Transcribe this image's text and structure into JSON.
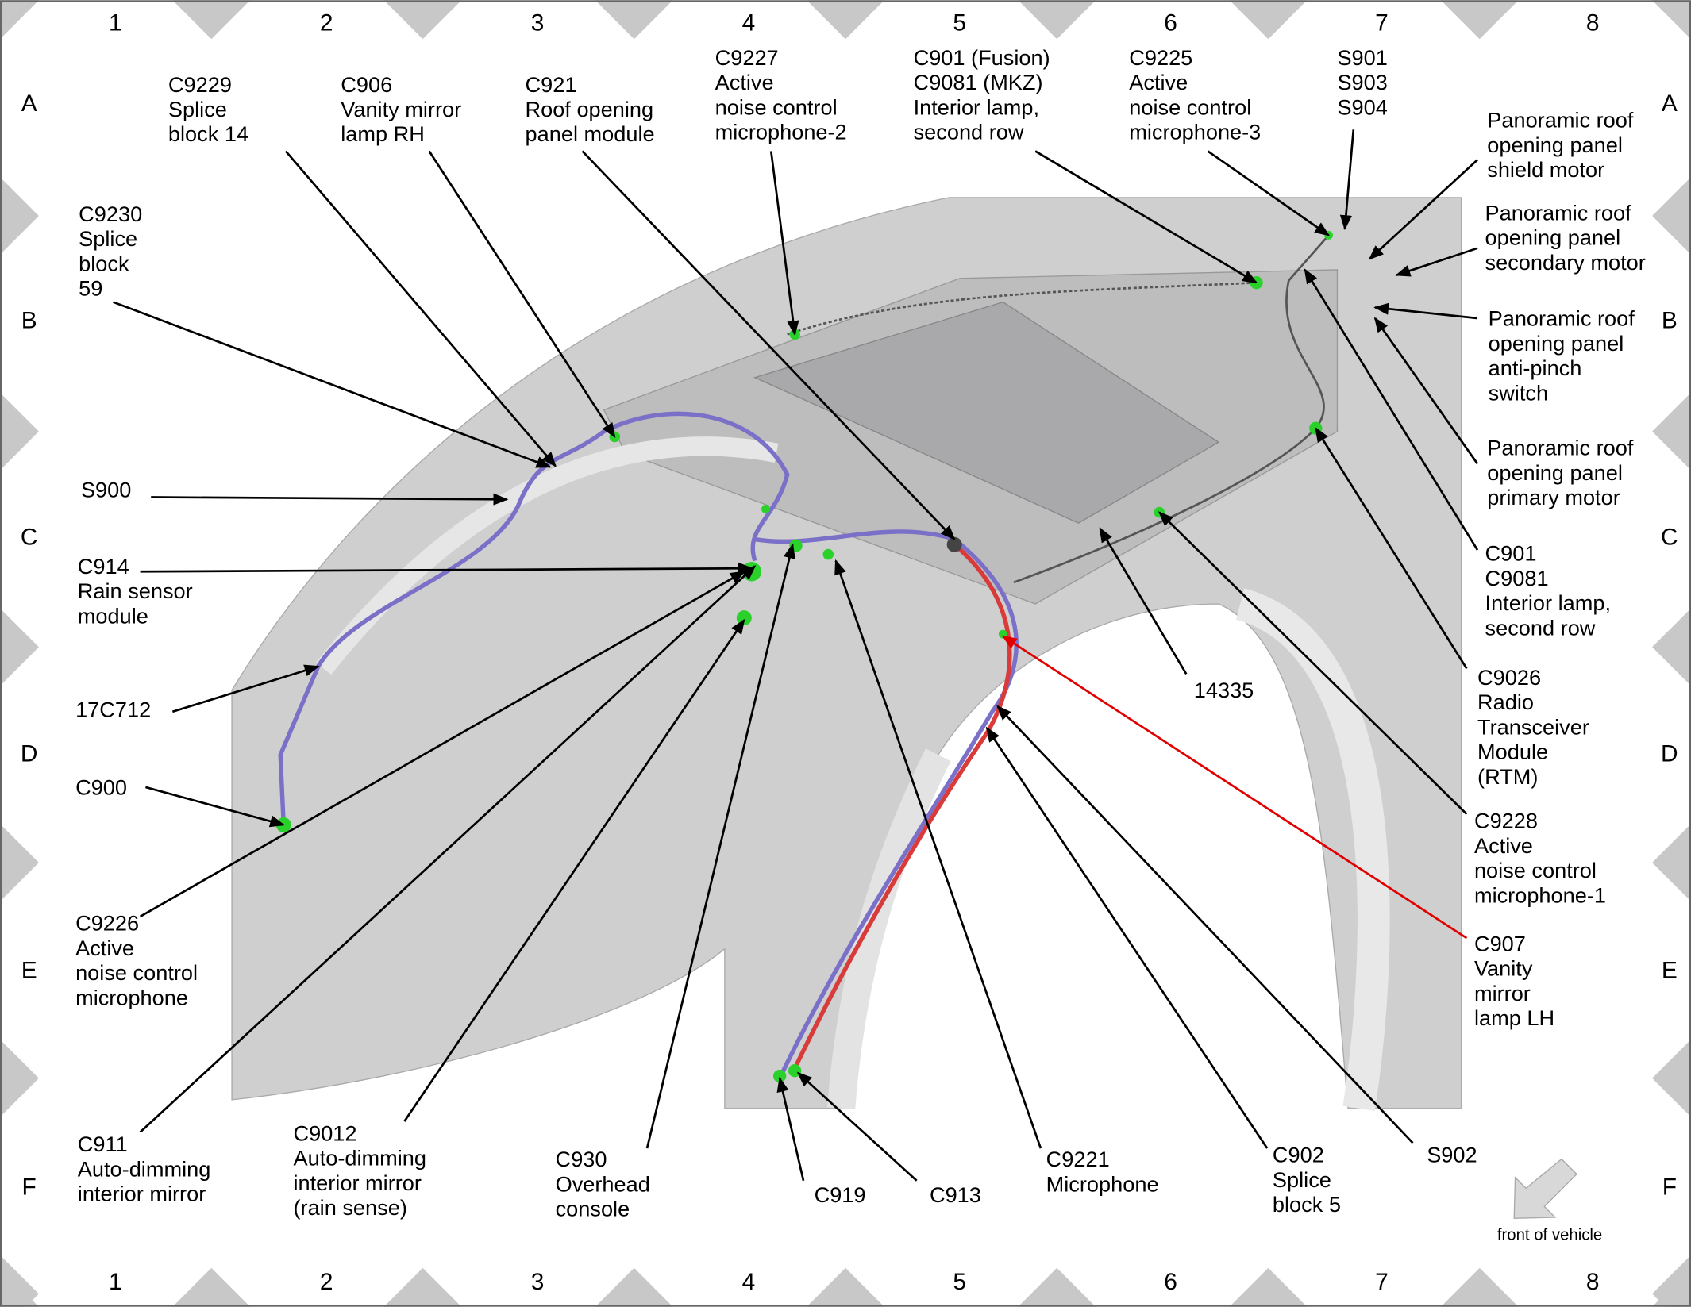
{
  "grid": {
    "columns": [
      "1",
      "2",
      "3",
      "4",
      "5",
      "6",
      "7",
      "8"
    ],
    "rows": [
      "A",
      "B",
      "C",
      "D",
      "E",
      "F"
    ]
  },
  "labels": [
    {
      "lines": [
        "C9229",
        "Splice",
        "block 14"
      ]
    },
    {
      "lines": [
        "C906",
        "Vanity mirror",
        "lamp RH"
      ]
    },
    {
      "lines": [
        "C921",
        "Roof opening",
        "panel module"
      ]
    },
    {
      "lines": [
        "C9227",
        "Active",
        "noise control",
        "microphone-2"
      ]
    },
    {
      "lines": [
        "C901 (Fusion)",
        "C9081 (MKZ)",
        "Interior lamp,",
        "second row"
      ]
    },
    {
      "lines": [
        "C9225",
        "Active",
        "noise control",
        "microphone-3"
      ]
    },
    {
      "lines": [
        "S901",
        "S903",
        "S904"
      ]
    },
    {
      "lines": [
        "Panoramic roof",
        "opening panel",
        "shield motor"
      ]
    },
    {
      "lines": [
        "Panoramic roof",
        "opening panel",
        "secondary motor"
      ]
    },
    {
      "lines": [
        "Panoramic roof",
        "opening panel",
        "anti-pinch",
        "switch"
      ]
    },
    {
      "lines": [
        "Panoramic roof",
        "opening panel",
        "primary motor"
      ]
    },
    {
      "lines": [
        "C901",
        "C9081",
        "Interior lamp,",
        "second row"
      ]
    },
    {
      "lines": [
        "C9026",
        "Radio",
        "Transceiver",
        "Module",
        "(RTM)"
      ]
    },
    {
      "lines": [
        "C9228",
        "Active",
        "noise control",
        "microphone-1"
      ]
    },
    {
      "lines": [
        "14335"
      ]
    },
    {
      "lines": [
        "C907",
        "Vanity",
        "mirror",
        "lamp LH"
      ],
      "color": "#e00000"
    },
    {
      "lines": [
        "S902"
      ]
    },
    {
      "lines": [
        "C902",
        "Splice",
        "block 5"
      ]
    },
    {
      "lines": [
        "C9221",
        "Microphone"
      ]
    },
    {
      "lines": [
        "C913"
      ]
    },
    {
      "lines": [
        "C919"
      ]
    },
    {
      "lines": [
        "C930",
        "Overhead",
        "console"
      ]
    },
    {
      "lines": [
        "C9012",
        "Auto-dimming",
        "interior mirror",
        "(rain sense)"
      ]
    },
    {
      "lines": [
        "C911",
        "Auto-dimming",
        "interior mirror"
      ]
    },
    {
      "lines": [
        "C9226",
        "Active",
        "noise control",
        "microphone"
      ]
    },
    {
      "lines": [
        "C900"
      ]
    },
    {
      "lines": [
        "17C712"
      ]
    },
    {
      "lines": [
        "C914",
        "Rain sensor",
        "module"
      ]
    },
    {
      "lines": [
        "S900"
      ]
    },
    {
      "lines": [
        "C9230",
        "Splice",
        "block",
        "59"
      ]
    }
  ],
  "front_label": "front of vehicle"
}
